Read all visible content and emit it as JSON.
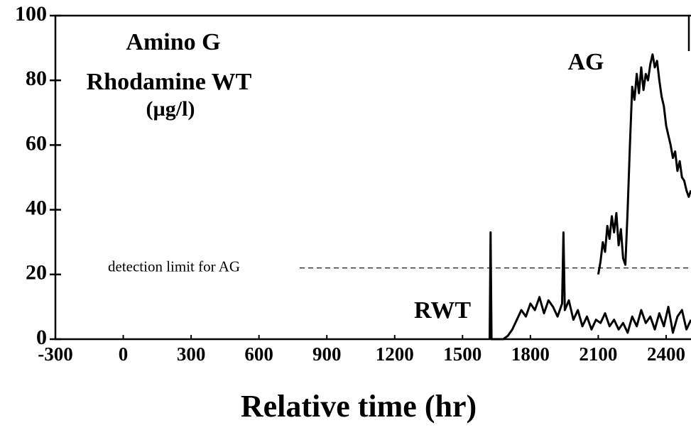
{
  "chart_data": {
    "type": "line",
    "y_label": [
      "Amino G",
      "Rhodamine WT",
      "(µg/l)"
    ],
    "x_label": "Relative time (hr)",
    "xlim": [
      -300,
      2510
    ],
    "ylim": [
      0,
      100
    ],
    "xticks": [
      -300,
      0,
      300,
      600,
      900,
      1200,
      1500,
      1800,
      2100,
      2400
    ],
    "yticks": [
      0,
      20,
      40,
      60,
      80,
      100
    ],
    "detection_limit": {
      "label": "detection limit for AG",
      "value": 22
    },
    "series": [
      {
        "name": "AG",
        "color": "#000000",
        "x": [
          2100,
          2110,
          2120,
          2130,
          2140,
          2150,
          2160,
          2170,
          2180,
          2190,
          2200,
          2210,
          2220,
          2230,
          2240,
          2250,
          2260,
          2270,
          2280,
          2290,
          2300,
          2310,
          2320,
          2330,
          2340,
          2350,
          2360,
          2370,
          2380,
          2390,
          2400,
          2410,
          2420,
          2430,
          2440,
          2450,
          2460,
          2470,
          2480,
          2490,
          2500,
          2510
        ],
        "values": [
          20,
          24,
          30,
          27,
          35,
          31,
          38,
          33,
          39,
          29,
          34,
          25,
          23,
          40,
          60,
          78,
          74,
          82,
          76,
          84,
          77,
          82,
          80,
          85,
          88,
          84,
          86,
          80,
          75,
          72,
          66,
          63,
          60,
          56,
          58,
          52,
          55,
          50,
          49,
          46,
          44,
          46
        ]
      },
      {
        "name": "RWT",
        "color": "#000000",
        "x": [
          1620,
          1624,
          1628,
          1660,
          1680,
          1700,
          1720,
          1740,
          1760,
          1780,
          1800,
          1820,
          1840,
          1860,
          1880,
          1900,
          1920,
          1940,
          1946,
          1952,
          1970,
          1990,
          2010,
          2030,
          2050,
          2070,
          2090,
          2110,
          2130,
          2150,
          2170,
          2190,
          2210,
          2230,
          2250,
          2270,
          2290,
          2310,
          2330,
          2350,
          2370,
          2390,
          2410,
          2430,
          2450,
          2470,
          2490,
          2510
        ],
        "values": [
          0,
          33,
          0,
          0,
          0,
          1,
          3,
          6,
          9,
          7,
          11,
          9,
          13,
          8,
          12,
          10,
          7,
          11,
          33,
          9,
          12,
          6,
          9,
          4,
          7,
          3,
          6,
          5,
          8,
          4,
          6,
          3,
          5,
          2,
          7,
          4,
          9,
          5,
          7,
          3,
          8,
          4,
          10,
          2,
          7,
          9,
          3,
          6
        ]
      }
    ]
  }
}
